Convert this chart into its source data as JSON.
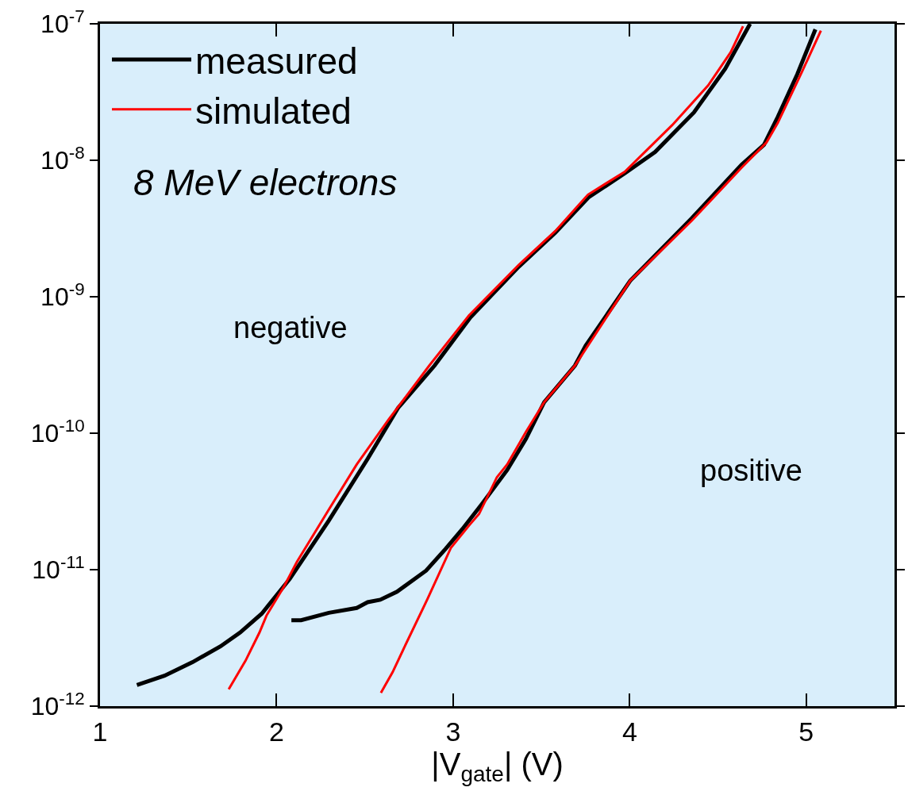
{
  "chart_data": {
    "type": "line",
    "xlabel": "|V$_{gate}$| (V)",
    "xlim": [
      1,
      5.5
    ],
    "xticks": [
      1,
      2,
      3,
      4,
      5
    ],
    "ylim": [
      1e-12,
      1e-07
    ],
    "log": "y",
    "yticks": [
      {
        "value": 1e-12,
        "label": "10$^{-12}$"
      },
      {
        "value": 1e-11,
        "label": "10$^{-11}$"
      },
      {
        "value": 1e-10,
        "label": "10$^{-10}$"
      },
      {
        "value": 1e-09,
        "label": "10$^{-9}$"
      },
      {
        "value": 1e-08,
        "label": "10$^{-8}$"
      },
      {
        "value": 1e-07,
        "label": "10$^{-7}$"
      }
    ],
    "grid": false,
    "legend": "top left",
    "marker": "none",
    "series": [
      {
        "name": "measured",
        "color": "#000000",
        "x": [
          1.209,
          1.365,
          1.524,
          1.682,
          1.793,
          1.916,
          2.075,
          2.296,
          2.516,
          2.688,
          2.895,
          3.098,
          3.372,
          3.579,
          3.767,
          3.972,
          4.144,
          4.364,
          4.541,
          4.682
        ],
        "values": [
          1.43e-12,
          1.67e-12,
          2.1e-12,
          2.74e-12,
          3.46e-12,
          4.76e-12,
          8.57e-12,
          2.29e-11,
          6.49e-11,
          1.53e-10,
          3.13e-10,
          7.06e-10,
          1.66e-09,
          2.95e-09,
          5.35e-09,
          8.02e-09,
          1.15e-08,
          2.24e-08,
          4.68e-08,
          1e-07
        ]
      },
      {
        "color": "#000000",
        "x": [
          2.084,
          2.139,
          2.296,
          2.454,
          2.516,
          2.587,
          2.682,
          2.847,
          2.957,
          3.052,
          3.163,
          3.306,
          3.412,
          3.516,
          3.69,
          3.751,
          4.003,
          4.351,
          4.633,
          4.761,
          4.839,
          4.949,
          5.052
        ],
        "values": [
          4.26e-12,
          4.26e-12,
          4.83e-12,
          5.24e-12,
          5.78e-12,
          6.02e-12,
          6.9e-12,
          9.84e-12,
          1.42e-11,
          1.98e-11,
          3.03e-11,
          5.37e-11,
          9.06e-11,
          1.69e-10,
          3.13e-10,
          4.38e-10,
          1.31e-09,
          3.75e-09,
          9.25e-09,
          1.3e-08,
          2.08e-08,
          4.26e-08,
          9.1e-08
        ]
      },
      {
        "name": "simulated",
        "color": "#ff0000",
        "x": [
          1.729,
          1.824,
          1.903,
          1.943,
          2.044,
          2.115,
          2.296,
          2.454,
          2.635,
          2.865,
          3.09,
          3.372,
          3.579,
          3.764,
          3.972,
          4.241,
          4.444,
          4.572,
          4.642
        ],
        "values": [
          1.33e-12,
          2.15e-12,
          3.46e-12,
          4.61e-12,
          7.6e-12,
          1.14e-11,
          2.76e-11,
          5.9e-11,
          1.26e-10,
          3.13e-10,
          7.3e-10,
          1.71e-09,
          3.03e-09,
          5.6e-09,
          8.24e-09,
          1.81e-08,
          3.53e-08,
          6.18e-08,
          9.6e-08
        ]
      },
      {
        "color": "#ff0000",
        "x": [
          2.591,
          2.657,
          2.722,
          2.856,
          2.988,
          3.092,
          3.147,
          3.248,
          3.306,
          3.412,
          3.516,
          3.69,
          4.003,
          4.351,
          4.633,
          4.775,
          4.839,
          4.973,
          5.083
        ],
        "values": [
          1.25e-12,
          1.77e-12,
          2.67e-12,
          6.14e-12,
          1.45e-11,
          2.12e-11,
          2.56e-11,
          4.76e-11,
          5.9e-11,
          1.02e-10,
          1.69e-10,
          3.13e-10,
          1.31e-09,
          3.6e-09,
          8.8e-09,
          1.35e-08,
          1.88e-08,
          4.37e-08,
          8.9e-08
        ]
      }
    ],
    "annotations": [
      "8 MeV electrons",
      "negative",
      "positive"
    ]
  }
}
